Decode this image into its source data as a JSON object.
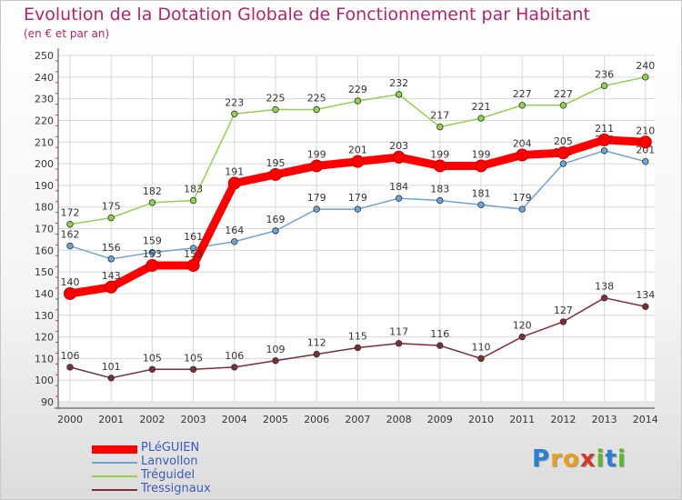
{
  "chart_data": {
    "type": "line",
    "title": "Evolution de la Dotation Globale de Fonctionnement par Habitant",
    "subtitle": "(en € et par an)",
    "x": [
      "2000",
      "2001",
      "2002",
      "2003",
      "2004",
      "2005",
      "2006",
      "2007",
      "2008",
      "2009",
      "2010",
      "2011",
      "2012",
      "2013",
      "2014"
    ],
    "ylim": [
      90,
      250
    ],
    "yticks": [
      90,
      100,
      110,
      120,
      130,
      140,
      150,
      160,
      170,
      180,
      190,
      200,
      210,
      220,
      230,
      240,
      250
    ],
    "grid": true,
    "legend_position": "bottom-left",
    "series": [
      {
        "name": "PLéGUIEN",
        "color": "#ff0000",
        "values": [
          140,
          143,
          153,
          153,
          191,
          195,
          199,
          201,
          203,
          199,
          199,
          204,
          205,
          211,
          210
        ]
      },
      {
        "name": "Lanvollon",
        "color": "#6fa3d4",
        "values": [
          162,
          156,
          159,
          161,
          164,
          169,
          179,
          179,
          184,
          183,
          181,
          179,
          200,
          206,
          201
        ]
      },
      {
        "name": "Tréguidel",
        "color": "#8ed24e",
        "values": [
          172,
          175,
          182,
          183,
          223,
          225,
          225,
          229,
          232,
          217,
          221,
          227,
          227,
          236,
          240
        ]
      },
      {
        "name": "Tressignaux",
        "color": "#7a2e36",
        "values": [
          106,
          101,
          105,
          105,
          106,
          109,
          112,
          115,
          117,
          116,
          110,
          120,
          127,
          138,
          134
        ]
      }
    ]
  },
  "brand": {
    "letters": [
      {
        "ch": "P",
        "color": "#2a7fd4"
      },
      {
        "ch": "r",
        "color": "#e8a020"
      },
      {
        "ch": "o",
        "color": "#e8a020"
      },
      {
        "ch": "x",
        "color": "#d43a2a"
      },
      {
        "ch": "i",
        "color": "#5cb82e"
      },
      {
        "ch": "t",
        "color": "#2a7fd4"
      },
      {
        "ch": "i",
        "color": "#5cb82e"
      }
    ]
  }
}
